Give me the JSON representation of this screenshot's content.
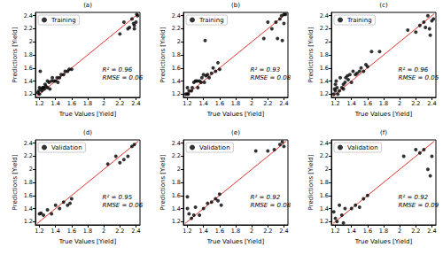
{
  "chart_data": [
    {
      "type": "scatter",
      "title": "(a)",
      "x_label": "True Values [Yield]",
      "y_label": "Predictions [Yield]",
      "xlim": [
        1.15,
        2.45
      ],
      "ylim": [
        1.15,
        2.45
      ],
      "xticks": [
        1.2,
        1.4,
        1.6,
        1.8,
        2.0,
        2.2,
        2.4
      ],
      "yticks": [
        1.2,
        1.4,
        1.6,
        1.8,
        2.0,
        2.2,
        2.4
      ],
      "legend": "upper left",
      "grid": false,
      "annotations": [
        "R² = 0.96",
        "RMSE = 0.06"
      ],
      "identity_line": {
        "x": [
          1.17,
          2.43
        ],
        "values": [
          1.17,
          2.43
        ],
        "color": "#e8312a"
      },
      "series": [
        {
          "name": "Training",
          "color": "#000000",
          "marker": "circle",
          "x": [
            1.18,
            1.19,
            1.2,
            1.2,
            1.21,
            1.22,
            1.23,
            1.24,
            1.25,
            1.26,
            1.27,
            1.28,
            1.3,
            1.3,
            1.32,
            1.33,
            1.35,
            1.36,
            1.38,
            1.4,
            1.42,
            1.43,
            1.45,
            1.47,
            1.5,
            1.52,
            1.55,
            1.57,
            1.6,
            2.2,
            2.25,
            2.3,
            2.32,
            2.35,
            2.37,
            2.38,
            2.4,
            2.41,
            2.42,
            2.38
          ],
          "values": [
            1.22,
            1.25,
            1.2,
            1.3,
            1.55,
            1.28,
            1.25,
            1.3,
            1.3,
            1.28,
            1.35,
            1.32,
            1.3,
            1.4,
            1.38,
            1.28,
            1.4,
            1.45,
            1.4,
            1.4,
            1.45,
            1.38,
            1.45,
            1.5,
            1.5,
            1.55,
            1.55,
            1.58,
            1.58,
            2.12,
            2.3,
            2.2,
            2.22,
            2.35,
            2.28,
            2.2,
            2.3,
            2.42,
            2.4,
            2.25
          ]
        }
      ]
    },
    {
      "type": "scatter",
      "title": "(b)",
      "x_label": "True Values [Yield]",
      "y_label": "Predictions [Yield]",
      "xlim": [
        1.15,
        2.45
      ],
      "ylim": [
        1.15,
        2.45
      ],
      "xticks": [
        1.2,
        1.4,
        1.6,
        1.8,
        2.0,
        2.2,
        2.4
      ],
      "yticks": [
        1.2,
        1.4,
        1.6,
        1.8,
        2.0,
        2.2,
        2.4
      ],
      "legend": "upper left",
      "grid": false,
      "annotations": [
        "R² = 0.93",
        "RMSE = 0.08"
      ],
      "identity_line": {
        "x": [
          1.17,
          2.43
        ],
        "values": [
          1.17,
          2.43
        ],
        "color": "#e8312a"
      },
      "series": [
        {
          "name": "Training",
          "color": "#000000",
          "marker": "circle",
          "x": [
            1.18,
            1.2,
            1.2,
            1.21,
            1.22,
            1.25,
            1.26,
            1.28,
            1.3,
            1.32,
            1.33,
            1.35,
            1.37,
            1.38,
            1.4,
            1.41,
            1.42,
            1.43,
            1.45,
            1.47,
            1.5,
            1.52,
            1.55,
            1.58,
            1.6,
            2.15,
            2.2,
            2.25,
            2.3,
            2.32,
            2.35,
            2.37,
            2.38,
            2.4,
            2.42,
            2.4
          ],
          "values": [
            1.2,
            1.2,
            1.3,
            1.2,
            1.25,
            1.25,
            1.3,
            1.38,
            1.4,
            1.4,
            1.3,
            1.4,
            1.38,
            1.45,
            1.5,
            1.38,
            2.02,
            1.48,
            1.5,
            1.45,
            1.52,
            1.6,
            1.55,
            1.68,
            1.58,
            2.05,
            2.3,
            2.2,
            2.3,
            2.05,
            2.35,
            2.4,
            2.02,
            2.42,
            2.42,
            2.28
          ]
        }
      ]
    },
    {
      "type": "scatter",
      "title": "(c)",
      "x_label": "True Values [Yield]",
      "y_label": "Predictions [Yield]",
      "xlim": [
        1.15,
        2.45
      ],
      "ylim": [
        1.15,
        2.45
      ],
      "xticks": [
        1.2,
        1.4,
        1.6,
        1.8,
        2.0,
        2.2,
        2.4
      ],
      "yticks": [
        1.2,
        1.4,
        1.6,
        1.8,
        2.0,
        2.2,
        2.4
      ],
      "legend": "upper left",
      "grid": false,
      "annotations": [
        "R² = 0.96",
        "RMSE = 0.05"
      ],
      "identity_line": {
        "x": [
          1.17,
          2.43
        ],
        "values": [
          1.17,
          2.43
        ],
        "color": "#e8312a"
      },
      "series": [
        {
          "name": "Training",
          "color": "#000000",
          "marker": "circle",
          "x": [
            1.18,
            1.19,
            1.2,
            1.2,
            1.21,
            1.22,
            1.23,
            1.25,
            1.26,
            1.28,
            1.3,
            1.3,
            1.32,
            1.33,
            1.35,
            1.36,
            1.38,
            1.4,
            1.42,
            1.45,
            1.47,
            1.5,
            1.52,
            1.55,
            1.58,
            1.6,
            1.65,
            1.75,
            2.1,
            2.2,
            2.25,
            2.3,
            2.32,
            2.35,
            2.37,
            2.4,
            2.42,
            2.38
          ],
          "values": [
            1.2,
            1.28,
            1.35,
            1.25,
            1.4,
            1.3,
            1.2,
            1.25,
            1.45,
            1.3,
            1.35,
            1.28,
            1.38,
            1.45,
            1.48,
            1.42,
            1.5,
            1.38,
            1.55,
            1.5,
            1.52,
            1.55,
            1.6,
            1.55,
            1.65,
            1.62,
            1.85,
            1.85,
            2.18,
            2.15,
            2.25,
            2.3,
            2.22,
            2.4,
            2.2,
            2.32,
            2.35,
            2.1
          ]
        }
      ]
    },
    {
      "type": "scatter",
      "title": "(d)",
      "x_label": "True Values [Yield]",
      "y_label": "Predictions [Yield]",
      "xlim": [
        1.15,
        2.45
      ],
      "ylim": [
        1.15,
        2.45
      ],
      "xticks": [
        1.2,
        1.4,
        1.6,
        1.8,
        2.0,
        2.2,
        2.4
      ],
      "yticks": [
        1.2,
        1.4,
        1.6,
        1.8,
        2.0,
        2.2,
        2.4
      ],
      "legend": "upper left",
      "grid": false,
      "annotations": [
        "R² = 0.95",
        "RMSE = 0.06"
      ],
      "identity_line": {
        "x": [
          1.17,
          2.43
        ],
        "values": [
          1.17,
          2.43
        ],
        "color": "#e8312a"
      },
      "series": [
        {
          "name": "Validation",
          "color": "#000000",
          "marker": "circle",
          "x": [
            1.2,
            1.22,
            1.25,
            1.3,
            1.35,
            1.4,
            1.45,
            1.5,
            1.55,
            1.58,
            1.6,
            2.05,
            2.15,
            2.2,
            2.25,
            2.3,
            2.35,
            2.38
          ],
          "values": [
            1.32,
            1.33,
            1.3,
            1.38,
            1.32,
            1.45,
            1.4,
            1.5,
            1.45,
            1.48,
            1.55,
            2.08,
            2.2,
            2.1,
            2.15,
            2.2,
            2.35,
            2.38
          ]
        }
      ]
    },
    {
      "type": "scatter",
      "title": "(e)",
      "x_label": "True Values [Yield]",
      "y_label": "Predictions [Yield]",
      "xlim": [
        1.15,
        2.45
      ],
      "ylim": [
        1.15,
        2.45
      ],
      "xticks": [
        1.2,
        1.4,
        1.6,
        1.8,
        2.0,
        2.2,
        2.4
      ],
      "yticks": [
        1.2,
        1.4,
        1.6,
        1.8,
        2.0,
        2.2,
        2.4
      ],
      "legend": "upper left",
      "grid": false,
      "annotations": [
        "R² = 0.92",
        "RMSE = 0.08"
      ],
      "identity_line": {
        "x": [
          1.17,
          2.43
        ],
        "values": [
          1.17,
          2.43
        ],
        "color": "#e8312a"
      },
      "series": [
        {
          "name": "Validation",
          "color": "#000000",
          "marker": "circle",
          "x": [
            1.2,
            1.2,
            1.22,
            1.25,
            1.28,
            1.3,
            1.35,
            1.4,
            1.45,
            1.5,
            1.55,
            1.58,
            1.6,
            1.62,
            2.05,
            2.2,
            2.28,
            2.35,
            2.38,
            2.4
          ],
          "values": [
            1.4,
            1.58,
            1.32,
            1.25,
            1.3,
            1.42,
            1.3,
            1.4,
            1.48,
            1.5,
            1.55,
            1.52,
            1.62,
            1.45,
            2.28,
            2.28,
            2.3,
            2.38,
            2.42,
            2.35
          ]
        }
      ]
    },
    {
      "type": "scatter",
      "title": "(f)",
      "x_label": "True Values [Yield]",
      "y_label": "Predictions [Yield]",
      "xlim": [
        1.15,
        2.45
      ],
      "ylim": [
        1.15,
        2.45
      ],
      "xticks": [
        1.2,
        1.4,
        1.6,
        1.8,
        2.0,
        2.2,
        2.4
      ],
      "yticks": [
        1.2,
        1.4,
        1.6,
        1.8,
        2.0,
        2.2,
        2.4
      ],
      "legend": "upper left",
      "grid": false,
      "annotations": [
        "R² = 0.92",
        "RMSE = 0.09"
      ],
      "identity_line": {
        "x": [
          1.17,
          2.43
        ],
        "values": [
          1.17,
          2.43
        ],
        "color": "#e8312a"
      },
      "series": [
        {
          "name": "Validation",
          "color": "#000000",
          "marker": "circle",
          "x": [
            1.18,
            1.2,
            1.22,
            1.25,
            1.28,
            1.3,
            1.32,
            1.4,
            1.45,
            1.5,
            1.55,
            1.6,
            2.05,
            2.2,
            2.25,
            2.3,
            2.35,
            2.38,
            2.4
          ],
          "values": [
            1.35,
            1.25,
            1.2,
            1.45,
            1.3,
            1.18,
            1.4,
            1.4,
            1.45,
            1.42,
            1.55,
            1.6,
            2.2,
            2.3,
            2.25,
            2.3,
            2.0,
            1.9,
            2.2
          ]
        }
      ]
    }
  ]
}
